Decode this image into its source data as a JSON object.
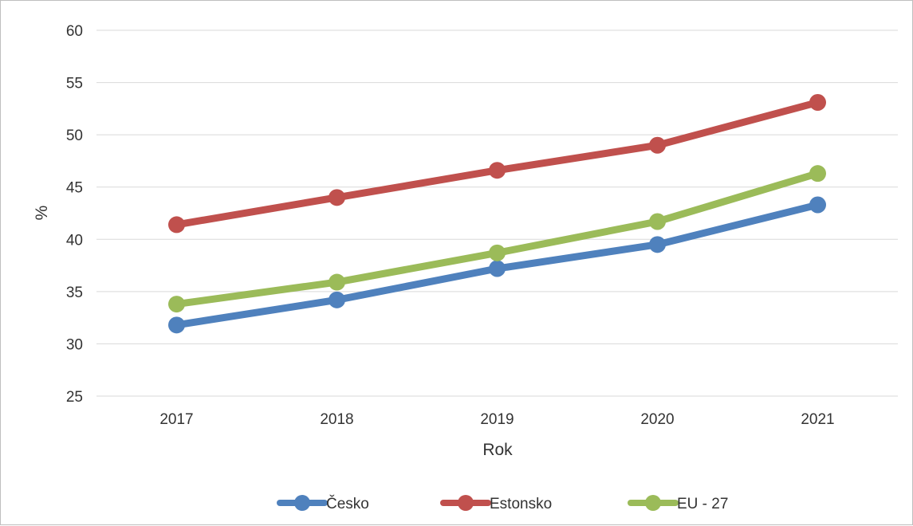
{
  "chart_data": {
    "type": "line",
    "title": "",
    "xlabel": "Rok",
    "ylabel": "%",
    "categories": [
      "2017",
      "2018",
      "2019",
      "2020",
      "2021"
    ],
    "ylim": [
      25,
      60
    ],
    "yticks": [
      "25",
      "30",
      "35",
      "40",
      "45",
      "50",
      "55",
      "60"
    ],
    "grid": "horizontal",
    "legend_position": "bottom",
    "series": [
      {
        "name": "Česko",
        "color": "#4f81bd",
        "values": [
          31.8,
          34.2,
          37.2,
          39.5,
          43.3
        ]
      },
      {
        "name": "Estonsko",
        "color": "#c0504d",
        "values": [
          41.4,
          44.0,
          46.6,
          49.0,
          53.1
        ]
      },
      {
        "name": "EU - 27",
        "color": "#9bbb59",
        "values": [
          33.8,
          35.9,
          38.7,
          41.7,
          46.3
        ]
      }
    ]
  }
}
